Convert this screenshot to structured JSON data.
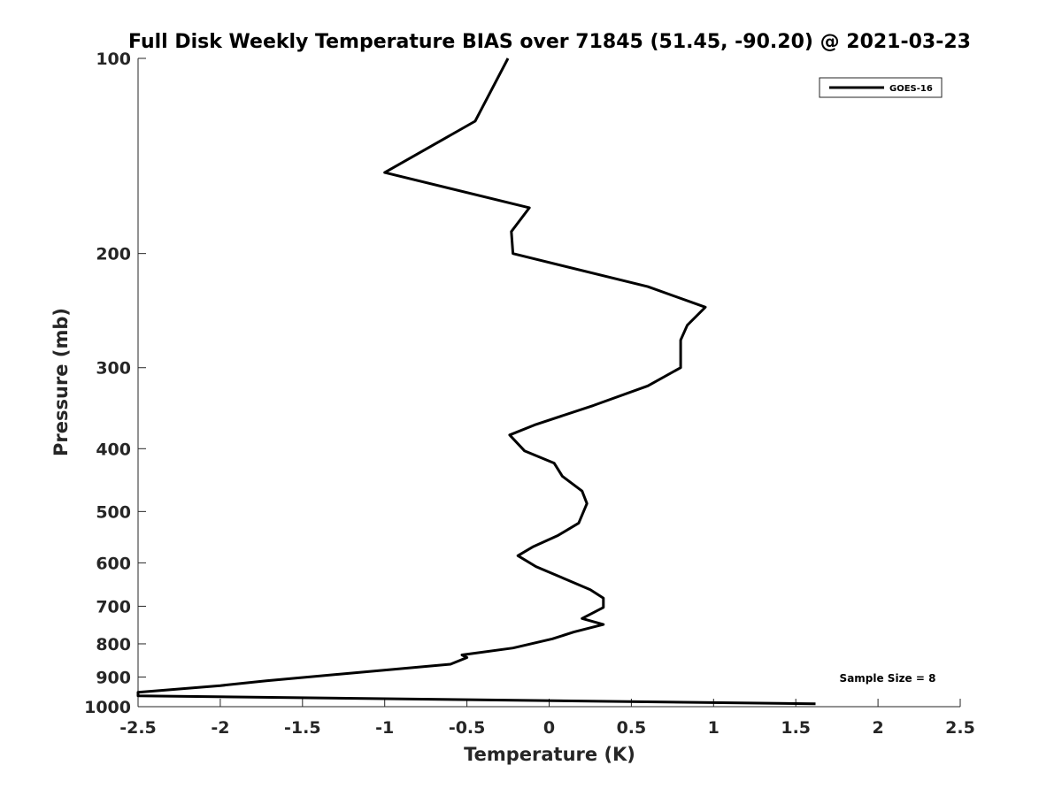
{
  "chart_data": {
    "type": "line",
    "title": "Full Disk Weekly Temperature BIAS over 71845 (51.45, -90.20) @ 2021-03-23",
    "xlabel": "Temperature (K)",
    "ylabel": "Pressure (mb)",
    "xlim": [
      -2.5,
      2.5
    ],
    "ylim": [
      1000,
      100
    ],
    "y_scale": "log",
    "x_ticks": [
      -2.5,
      -2,
      -1.5,
      -1,
      -0.5,
      0,
      0.5,
      1,
      1.5,
      2,
      2.5
    ],
    "x_tick_labels": [
      "-2.5",
      "-2",
      "-1.5",
      "-1",
      "-0.5",
      "0",
      "0.5",
      "1",
      "1.5",
      "2",
      "2.5"
    ],
    "y_ticks": [
      100,
      200,
      300,
      400,
      500,
      600,
      700,
      800,
      900,
      1000
    ],
    "y_tick_labels": [
      "100",
      "200",
      "300",
      "400",
      "500",
      "600",
      "700",
      "800",
      "900",
      "1000"
    ],
    "grid": false,
    "legend_position": "top-right",
    "series": [
      {
        "name": "GOES-16",
        "color": "#000000",
        "points": [
          [
            -0.25,
            100
          ],
          [
            -0.45,
            125
          ],
          [
            -1.0,
            150
          ],
          [
            -0.12,
            170
          ],
          [
            -0.23,
            185
          ],
          [
            -0.22,
            200
          ],
          [
            0.6,
            225
          ],
          [
            0.95,
            242
          ],
          [
            0.84,
            258
          ],
          [
            0.8,
            272
          ],
          [
            0.8,
            300
          ],
          [
            0.6,
            320
          ],
          [
            0.27,
            343
          ],
          [
            -0.08,
            367
          ],
          [
            -0.24,
            381
          ],
          [
            -0.15,
            403
          ],
          [
            0.03,
            421
          ],
          [
            0.08,
            441
          ],
          [
            0.2,
            465
          ],
          [
            0.23,
            486
          ],
          [
            0.18,
            521
          ],
          [
            0.05,
            545
          ],
          [
            -0.1,
            567
          ],
          [
            -0.19,
            585
          ],
          [
            -0.08,
            608
          ],
          [
            0.25,
            660
          ],
          [
            0.33,
            680
          ],
          [
            0.33,
            703
          ],
          [
            0.2,
            731
          ],
          [
            0.33,
            747
          ],
          [
            0.15,
            767
          ],
          [
            0.02,
            786
          ],
          [
            -0.22,
            812
          ],
          [
            -0.53,
            832
          ],
          [
            -0.5,
            840
          ],
          [
            -0.6,
            860
          ],
          [
            -1.72,
            912
          ],
          [
            -2.0,
            928
          ],
          [
            -2.5,
            950
          ],
          [
            -2.5,
            962
          ],
          [
            1.62,
            990
          ]
        ]
      }
    ],
    "annotations": [
      "Sample Size = 8"
    ]
  }
}
